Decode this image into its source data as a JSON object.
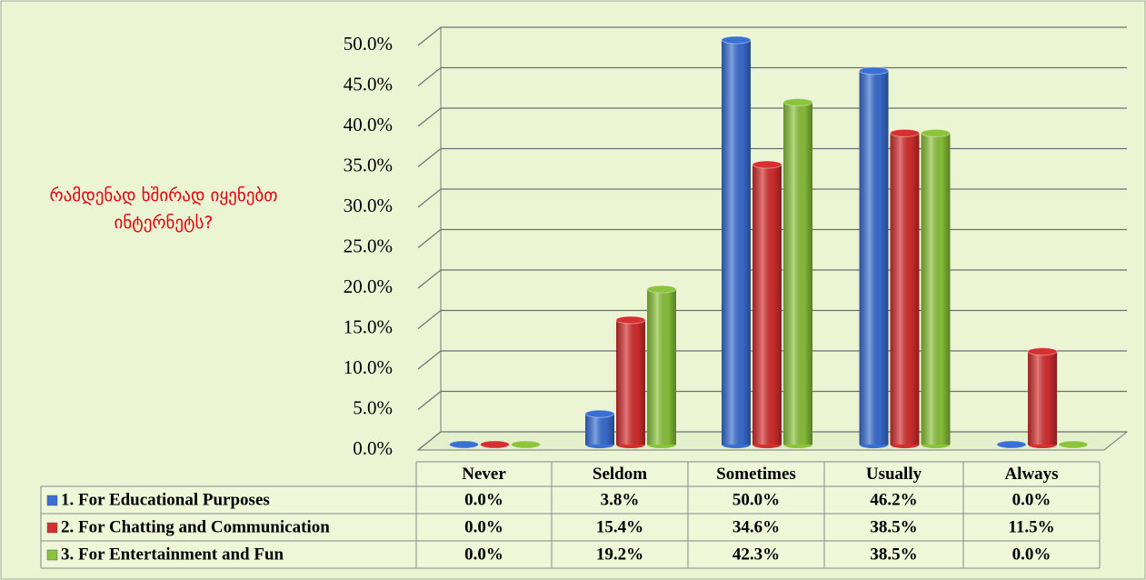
{
  "chart_data": {
    "type": "bar",
    "title": "რამდენად ხშირად იყენებთ ინტერნეტს?",
    "categories": [
      "Never",
      "Seldom",
      "Sometimes",
      "Usually",
      "Always"
    ],
    "series": [
      {
        "name": "1. For Educational Purposes",
        "color": "#3a6fd4",
        "values": [
          0,
          3.8,
          50,
          46.2,
          0
        ],
        "value_labels": [
          "0.0%",
          "3.8%",
          "50.0%",
          "46.2%",
          "0.0%"
        ]
      },
      {
        "name": "2. For Chatting and Communication",
        "color": "#d62f2f",
        "values": [
          0,
          15.4,
          34.6,
          38.5,
          11.5
        ],
        "value_labels": [
          "0.0%",
          "15.4%",
          "34.6%",
          "38.5%",
          "11.5%"
        ]
      },
      {
        "name": "3. For Entertainment and Fun",
        "color": "#8cc43a",
        "values": [
          0,
          19.2,
          42.3,
          38.5,
          0
        ],
        "value_labels": [
          "0.0%",
          "19.2%",
          "42.3%",
          "38.5%",
          "0.0%"
        ]
      }
    ],
    "ylim": [
      0,
      50
    ],
    "yticks": [
      {
        "value": 0,
        "label": "0.0%"
      },
      {
        "value": 5,
        "label": "5.0%"
      },
      {
        "value": 10,
        "label": "10.0%"
      },
      {
        "value": 15,
        "label": "15.0%"
      },
      {
        "value": 20,
        "label": "20.0%"
      },
      {
        "value": 25,
        "label": "25.0%"
      },
      {
        "value": 30,
        "label": "30.0%"
      },
      {
        "value": 35,
        "label": "35.0%"
      },
      {
        "value": 40,
        "label": "40.0%"
      },
      {
        "value": 45,
        "label": "45.0%"
      },
      {
        "value": 50,
        "label": "50.0%"
      }
    ],
    "grid": true
  }
}
